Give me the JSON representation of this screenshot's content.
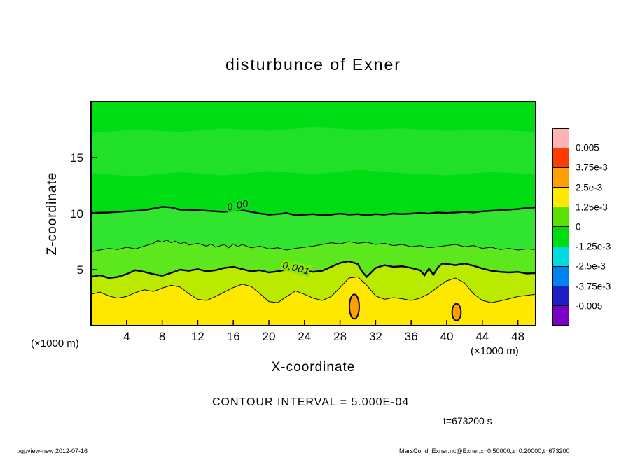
{
  "annotations": {
    "contour_interval": "CONTOUR INTERVAL = 5.000E-04",
    "time": "t=673200 s"
  },
  "footer": {
    "left": "./gpview-new  2012-07-16",
    "right": "MarsCond_Exner.nc@Exner,x=0:50000,z=0:20000,t=673200"
  },
  "colorbar": {
    "labels": [
      "0.005",
      "3.75e-3",
      "2.5e-3",
      "1.25e-3",
      "0",
      "-1.25e-3",
      "-2.5e-3",
      "-3.75e-3",
      "-0.005"
    ],
    "colors": [
      "#FFB4B4",
      "#FF3C00",
      "#FFA000",
      "#FFE800",
      "#5AE100",
      "#00DC14",
      "#00DCDC",
      "#0082F0",
      "#1E1EC8",
      "#7800C8"
    ]
  },
  "chart_data": {
    "type": "contour",
    "title": "disturbunce of Exner",
    "xlabel": "X-coordinate",
    "ylabel": "Z-coordinate",
    "x_unit": "(×1000 m)",
    "z_unit": "(×1000 m)",
    "xlim": [
      0,
      50
    ],
    "ylim": [
      0,
      20
    ],
    "x_ticks": [
      4,
      8,
      12,
      16,
      20,
      24,
      28,
      32,
      36,
      40,
      44,
      48
    ],
    "z_ticks": [
      5,
      10,
      15
    ],
    "contour_interval": 0.0005,
    "tone_levels": [
      -0.005,
      -0.00375,
      -0.0025,
      -0.00125,
      0,
      0.00125,
      0.0025,
      0.00375,
      0.005
    ],
    "lines": {
      "topband_hi": [
        [
          0,
          17.2
        ],
        [
          5,
          17.5
        ],
        [
          10,
          17.3
        ],
        [
          15,
          17.6
        ],
        [
          20,
          17.4
        ],
        [
          25,
          17.7
        ],
        [
          30,
          17.5
        ],
        [
          35,
          17.6
        ],
        [
          40,
          17.4
        ],
        [
          45,
          17.5
        ],
        [
          50,
          17.3
        ]
      ],
      "topband_lo": [
        [
          0,
          13.6
        ],
        [
          5,
          13.3
        ],
        [
          10,
          13.7
        ],
        [
          15,
          13.4
        ],
        [
          20,
          13.8
        ],
        [
          25,
          13.5
        ],
        [
          30,
          13.9
        ],
        [
          35,
          13.6
        ],
        [
          40,
          13.4
        ],
        [
          45,
          13.7
        ],
        [
          50,
          13.5
        ]
      ],
      "z0": [
        [
          0,
          10.05
        ],
        [
          2,
          10.1
        ],
        [
          4,
          10.2
        ],
        [
          6,
          10.3
        ],
        [
          7,
          10.45
        ],
        [
          8,
          10.6
        ],
        [
          9,
          10.55
        ],
        [
          10,
          10.35
        ],
        [
          12,
          10.3
        ],
        [
          14,
          10.2
        ],
        [
          15,
          10.15
        ],
        [
          16,
          10.25
        ],
        [
          17,
          10.3
        ],
        [
          18,
          10.15
        ],
        [
          19,
          10.0
        ],
        [
          20,
          9.9
        ],
        [
          21,
          9.95
        ],
        [
          22,
          10.05
        ],
        [
          23,
          9.85
        ],
        [
          24,
          9.9
        ],
        [
          25,
          9.95
        ],
        [
          26,
          9.85
        ],
        [
          27,
          9.9
        ],
        [
          28,
          10.0
        ],
        [
          29,
          9.9
        ],
        [
          30,
          9.95
        ],
        [
          31,
          9.85
        ],
        [
          32,
          9.95
        ],
        [
          33,
          9.9
        ],
        [
          34,
          10.0
        ],
        [
          35,
          9.95
        ],
        [
          36,
          10.0
        ],
        [
          37,
          10.05
        ],
        [
          38,
          10.0
        ],
        [
          39,
          10.1
        ],
        [
          40,
          10.05
        ],
        [
          41,
          10.1
        ],
        [
          42,
          10.15
        ],
        [
          43,
          10.1
        ],
        [
          44,
          10.2
        ],
        [
          45,
          10.25
        ],
        [
          46,
          10.3
        ],
        [
          47,
          10.35
        ],
        [
          48,
          10.4
        ],
        [
          49,
          10.5
        ],
        [
          50,
          10.55
        ]
      ],
      "thin1": [
        [
          0,
          6.6
        ],
        [
          1,
          6.75
        ],
        [
          2,
          6.9
        ],
        [
          3,
          6.8
        ],
        [
          4,
          7.0
        ],
        [
          5,
          6.85
        ],
        [
          6,
          7.1
        ],
        [
          7,
          7.35
        ],
        [
          7.5,
          7.6
        ],
        [
          8,
          7.45
        ],
        [
          8.5,
          7.65
        ],
        [
          9,
          7.4
        ],
        [
          9.5,
          7.55
        ],
        [
          10,
          7.3
        ],
        [
          10.5,
          7.45
        ],
        [
          11,
          7.2
        ],
        [
          12,
          7.35
        ],
        [
          13,
          7.1
        ],
        [
          13.5,
          7.3
        ],
        [
          14,
          7.0
        ],
        [
          15,
          7.25
        ],
        [
          15.5,
          6.95
        ],
        [
          16,
          7.3
        ],
        [
          16.5,
          7.05
        ],
        [
          17,
          7.25
        ],
        [
          18,
          6.95
        ],
        [
          19,
          7.1
        ],
        [
          20,
          6.85
        ],
        [
          21,
          6.95
        ],
        [
          22,
          6.75
        ],
        [
          23,
          6.9
        ],
        [
          24,
          7.0
        ],
        [
          25,
          7.1
        ],
        [
          26,
          7.25
        ],
        [
          27,
          7.4
        ],
        [
          28,
          7.3
        ],
        [
          29,
          7.5
        ],
        [
          30,
          7.35
        ],
        [
          31,
          7.45
        ],
        [
          32,
          7.25
        ],
        [
          33,
          7.35
        ],
        [
          34,
          7.15
        ],
        [
          35,
          7.25
        ],
        [
          36,
          7.05
        ],
        [
          37,
          7.15
        ],
        [
          38,
          6.95
        ],
        [
          39,
          7.05
        ],
        [
          40,
          7.15
        ],
        [
          41,
          7.25
        ],
        [
          42,
          7.05
        ],
        [
          43,
          7.15
        ],
        [
          44,
          6.9
        ],
        [
          45,
          7.0
        ],
        [
          46,
          6.8
        ],
        [
          47,
          6.9
        ],
        [
          48,
          6.75
        ],
        [
          49,
          6.85
        ],
        [
          50,
          6.8
        ]
      ],
      "c001": [
        [
          0,
          4.35
        ],
        [
          1,
          4.5
        ],
        [
          2,
          4.25
        ],
        [
          3,
          4.35
        ],
        [
          4,
          4.6
        ],
        [
          5,
          4.95
        ],
        [
          6,
          4.8
        ],
        [
          7,
          4.6
        ],
        [
          8,
          4.45
        ],
        [
          9,
          4.7
        ],
        [
          10,
          5.0
        ],
        [
          11,
          4.9
        ],
        [
          12,
          5.05
        ],
        [
          13,
          4.85
        ],
        [
          14,
          4.95
        ],
        [
          15,
          5.15
        ],
        [
          16,
          5.25
        ],
        [
          17,
          5.05
        ],
        [
          18,
          4.85
        ],
        [
          19,
          4.95
        ],
        [
          20,
          4.75
        ],
        [
          21,
          4.85
        ],
        [
          22,
          5.0
        ],
        [
          23,
          5.1
        ],
        [
          24,
          4.9
        ],
        [
          25,
          4.8
        ],
        [
          26,
          4.9
        ],
        [
          27,
          5.25
        ],
        [
          28,
          5.6
        ],
        [
          29,
          5.75
        ],
        [
          30,
          5.5
        ],
        [
          30.5,
          4.8
        ],
        [
          31,
          4.35
        ],
        [
          31.5,
          4.75
        ],
        [
          32,
          5.15
        ],
        [
          33,
          5.4
        ],
        [
          34,
          5.25
        ],
        [
          35,
          5.3
        ],
        [
          36,
          5.15
        ],
        [
          37,
          4.95
        ],
        [
          37.5,
          4.5
        ],
        [
          38,
          5.1
        ],
        [
          38.5,
          4.55
        ],
        [
          39,
          5.2
        ],
        [
          39.5,
          5.55
        ],
        [
          40,
          5.5
        ],
        [
          41,
          5.4
        ],
        [
          42,
          5.55
        ],
        [
          43,
          5.35
        ],
        [
          44,
          5.1
        ],
        [
          45,
          4.9
        ],
        [
          46,
          4.8
        ],
        [
          47,
          4.75
        ],
        [
          48,
          4.8
        ],
        [
          49,
          4.65
        ],
        [
          50,
          4.7
        ]
      ],
      "thin2": [
        [
          0,
          2.8
        ],
        [
          1,
          3.0
        ],
        [
          2,
          2.65
        ],
        [
          3,
          2.45
        ],
        [
          4,
          2.6
        ],
        [
          5,
          2.95
        ],
        [
          6,
          3.2
        ],
        [
          7,
          3.05
        ],
        [
          8,
          3.35
        ],
        [
          9,
          3.6
        ],
        [
          10,
          3.45
        ],
        [
          11,
          2.85
        ],
        [
          12,
          2.35
        ],
        [
          13,
          2.25
        ],
        [
          14,
          2.6
        ],
        [
          15,
          3.0
        ],
        [
          16,
          3.4
        ],
        [
          17,
          3.7
        ],
        [
          18,
          3.5
        ],
        [
          19,
          2.85
        ],
        [
          20,
          2.15
        ],
        [
          21,
          2.05
        ],
        [
          22,
          2.6
        ],
        [
          23,
          3.1
        ],
        [
          24,
          2.8
        ],
        [
          25,
          2.45
        ],
        [
          26,
          2.25
        ],
        [
          27,
          2.6
        ],
        [
          28,
          3.4
        ],
        [
          29,
          4.25
        ],
        [
          30,
          4.35
        ],
        [
          31,
          3.6
        ],
        [
          32,
          2.65
        ],
        [
          33,
          2.35
        ],
        [
          34,
          2.5
        ],
        [
          35,
          2.4
        ],
        [
          36,
          2.25
        ],
        [
          37,
          2.45
        ],
        [
          38,
          2.85
        ],
        [
          39,
          3.45
        ],
        [
          40,
          4.0
        ],
        [
          41,
          4.25
        ],
        [
          42,
          3.8
        ],
        [
          43,
          2.85
        ],
        [
          44,
          2.25
        ],
        [
          45,
          2.05
        ],
        [
          46,
          2.2
        ],
        [
          47,
          2.4
        ],
        [
          48,
          2.6
        ],
        [
          49,
          2.7
        ],
        [
          50,
          2.8
        ]
      ]
    },
    "bands": [
      {
        "color": "#00DC14",
        "upper": "edge:top",
        "lower": "edge:bottom"
      },
      {
        "color": "#20E128",
        "upper": "topband_hi",
        "lower": "topband_lo"
      },
      {
        "color": "#30E430",
        "upper": "z0",
        "lower": "thin1"
      },
      {
        "color": "#5CE81C",
        "upper": "thin1",
        "lower": "c001"
      },
      {
        "color": "#B9EA00",
        "upper": "c001",
        "lower": "thin2"
      },
      {
        "color": "#FFE800",
        "upper": "thin2",
        "lower": "edge:bottom"
      }
    ],
    "contour_lines": [
      {
        "line": "z0",
        "width": 2.4,
        "label": "0.00",
        "label_at": [
          16.6,
          10.45
        ],
        "label_rot": -12,
        "halo": "#10DE18"
      },
      {
        "line": "thin1",
        "width": 1.0
      },
      {
        "line": "c001",
        "width": 2.4,
        "label": "0.001",
        "label_at": [
          23.0,
          4.85
        ],
        "label_rot": 14,
        "halo": "#8CE60E"
      },
      {
        "line": "thin2",
        "width": 1.0
      }
    ],
    "blobs": [
      {
        "cx": 29.6,
        "cz": 1.7,
        "rx": 0.55,
        "rz": 1.1,
        "color": "#FFA000"
      },
      {
        "cx": 41.1,
        "cz": 1.2,
        "rx": 0.5,
        "rz": 0.75,
        "color": "#FFA000"
      }
    ]
  }
}
